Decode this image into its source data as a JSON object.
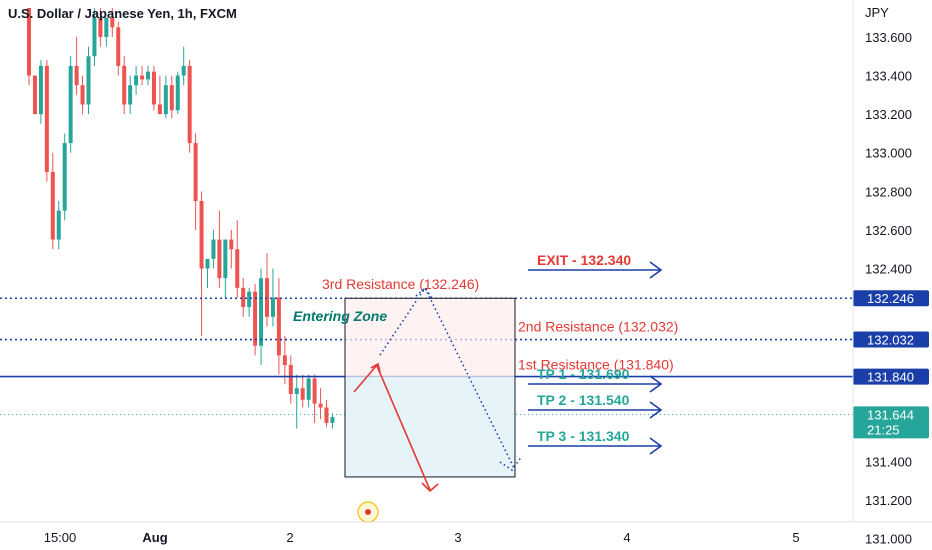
{
  "header": {
    "title": "U.S. Dollar / Japanese Yen, 1h, FXCM"
  },
  "chart_data": {
    "type": "candlestick",
    "currency": "JPY",
    "ylim": [
      130.9,
      133.75
    ],
    "y_ticks": [
      "133.600",
      "133.400",
      "133.200",
      "133.000",
      "132.800",
      "132.600",
      "132.400",
      "131.400",
      "131.200",
      "131.000"
    ],
    "x_ticks": [
      "15:00",
      "Aug",
      "2",
      "3",
      "4",
      "5"
    ],
    "up_color": "#26a69a",
    "down_color": "#ef5350",
    "candles": [
      {
        "o": 133.75,
        "h": 133.75,
        "l": 133.35,
        "c": 133.4
      },
      {
        "o": 133.4,
        "h": 133.4,
        "l": 133.2,
        "c": 133.2
      },
      {
        "o": 133.2,
        "h": 133.48,
        "l": 133.15,
        "c": 133.45
      },
      {
        "o": 133.45,
        "h": 133.48,
        "l": 132.85,
        "c": 132.9
      },
      {
        "o": 132.9,
        "h": 133.0,
        "l": 132.5,
        "c": 132.55
      },
      {
        "o": 132.55,
        "h": 132.75,
        "l": 132.5,
        "c": 132.7
      },
      {
        "o": 132.7,
        "h": 133.1,
        "l": 132.65,
        "c": 133.05
      },
      {
        "o": 133.05,
        "h": 133.5,
        "l": 133.0,
        "c": 133.45
      },
      {
        "o": 133.45,
        "h": 133.6,
        "l": 133.3,
        "c": 133.35
      },
      {
        "o": 133.35,
        "h": 133.4,
        "l": 133.2,
        "c": 133.25
      },
      {
        "o": 133.25,
        "h": 133.55,
        "l": 133.2,
        "c": 133.5
      },
      {
        "o": 133.5,
        "h": 133.75,
        "l": 133.45,
        "c": 133.7
      },
      {
        "o": 133.7,
        "h": 133.75,
        "l": 133.55,
        "c": 133.6
      },
      {
        "o": 133.6,
        "h": 133.7,
        "l": 133.55,
        "c": 133.7
      },
      {
        "o": 133.7,
        "h": 133.75,
        "l": 133.6,
        "c": 133.65
      },
      {
        "o": 133.65,
        "h": 133.68,
        "l": 133.4,
        "c": 133.45
      },
      {
        "o": 133.45,
        "h": 133.5,
        "l": 133.2,
        "c": 133.25
      },
      {
        "o": 133.25,
        "h": 133.4,
        "l": 133.2,
        "c": 133.35
      },
      {
        "o": 133.35,
        "h": 133.45,
        "l": 133.3,
        "c": 133.4
      },
      {
        "o": 133.4,
        "h": 133.45,
        "l": 133.35,
        "c": 133.38
      },
      {
        "o": 133.38,
        "h": 133.45,
        "l": 133.35,
        "c": 133.42
      },
      {
        "o": 133.42,
        "h": 133.45,
        "l": 133.22,
        "c": 133.25
      },
      {
        "o": 133.25,
        "h": 133.4,
        "l": 133.2,
        "c": 133.2
      },
      {
        "o": 133.2,
        "h": 133.4,
        "l": 133.18,
        "c": 133.35
      },
      {
        "o": 133.35,
        "h": 133.4,
        "l": 133.18,
        "c": 133.22
      },
      {
        "o": 133.22,
        "h": 133.42,
        "l": 133.2,
        "c": 133.4
      },
      {
        "o": 133.4,
        "h": 133.55,
        "l": 133.35,
        "c": 133.45
      },
      {
        "o": 133.45,
        "h": 133.48,
        "l": 133.0,
        "c": 133.05
      },
      {
        "o": 133.05,
        "h": 133.1,
        "l": 132.6,
        "c": 132.75
      },
      {
        "o": 132.75,
        "h": 132.8,
        "l": 132.05,
        "c": 132.4
      },
      {
        "o": 132.4,
        "h": 132.45,
        "l": 132.3,
        "c": 132.45
      },
      {
        "o": 132.45,
        "h": 132.6,
        "l": 132.4,
        "c": 132.55
      },
      {
        "o": 132.55,
        "h": 132.7,
        "l": 132.3,
        "c": 132.35
      },
      {
        "o": 132.35,
        "h": 132.55,
        "l": 132.25,
        "c": 132.55
      },
      {
        "o": 132.55,
        "h": 132.6,
        "l": 132.4,
        "c": 132.5
      },
      {
        "o": 132.5,
        "h": 132.65,
        "l": 132.25,
        "c": 132.3
      },
      {
        "o": 132.3,
        "h": 132.35,
        "l": 132.15,
        "c": 132.2
      },
      {
        "o": 132.2,
        "h": 132.3,
        "l": 132.15,
        "c": 132.28
      },
      {
        "o": 132.28,
        "h": 132.32,
        "l": 131.95,
        "c": 132.0
      },
      {
        "o": 132.0,
        "h": 132.4,
        "l": 131.9,
        "c": 132.35
      },
      {
        "o": 132.35,
        "h": 132.48,
        "l": 132.1,
        "c": 132.15
      },
      {
        "o": 132.15,
        "h": 132.4,
        "l": 132.1,
        "c": 132.25
      },
      {
        "o": 132.25,
        "h": 132.35,
        "l": 131.85,
        "c": 131.95
      },
      {
        "o": 131.95,
        "h": 132.05,
        "l": 131.8,
        "c": 131.9
      },
      {
        "o": 131.9,
        "h": 131.95,
        "l": 131.7,
        "c": 131.75
      },
      {
        "o": 131.75,
        "h": 131.85,
        "l": 131.57,
        "c": 131.78
      },
      {
        "o": 131.78,
        "h": 131.85,
        "l": 131.68,
        "c": 131.72
      },
      {
        "o": 131.72,
        "h": 131.85,
        "l": 131.68,
        "c": 131.83
      },
      {
        "o": 131.83,
        "h": 131.85,
        "l": 131.6,
        "c": 131.7
      },
      {
        "o": 131.7,
        "h": 131.78,
        "l": 131.62,
        "c": 131.68
      },
      {
        "o": 131.68,
        "h": 131.72,
        "l": 131.58,
        "c": 131.6
      },
      {
        "o": 131.6,
        "h": 131.65,
        "l": 131.57,
        "c": 131.63
      }
    ],
    "levels": [
      {
        "value": 132.246,
        "label": "3rd Resistance (132.246)",
        "badge": "132.246",
        "style": "dotted"
      },
      {
        "value": 132.032,
        "label": "2nd Resistance (132.032)",
        "badge": "132.032",
        "style": "dotted"
      },
      {
        "value": 131.84,
        "label": "1st Resistance (131.840)",
        "badge": "131.840",
        "style": "solid"
      }
    ],
    "current_price": {
      "value": 131.644,
      "label": "131.644",
      "countdown": "21:25"
    },
    "targets": [
      {
        "value": 132.34,
        "label": "EXIT - 132.340",
        "color": "#e53935"
      },
      {
        "value": 131.69,
        "label": "TP 1 - 131.690",
        "color": "#26a69a"
      },
      {
        "value": 131.54,
        "label": "TP 2 - 131.540",
        "color": "#26a69a"
      },
      {
        "value": 131.34,
        "label": "TP 3 - 131.340",
        "color": "#26a69a"
      }
    ],
    "zone": {
      "label": "Entering Zone",
      "top": 132.246,
      "mid": 131.84,
      "bottom": 131.32
    },
    "annotation_colors": {
      "resistance_text": "#e53935",
      "level_line": "#1a3fa8",
      "badge_bg": "#1a3fa8",
      "current_badge_bg": "#26a69a",
      "zone_label": "#00796b"
    }
  }
}
